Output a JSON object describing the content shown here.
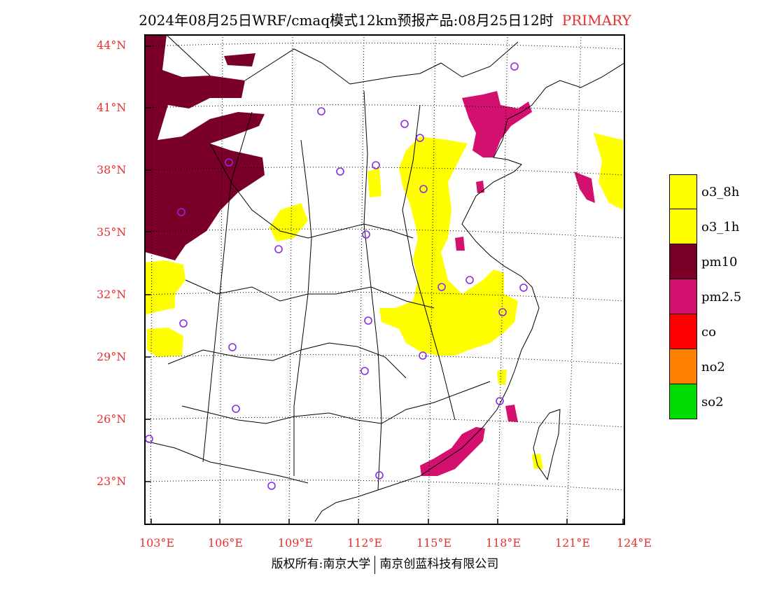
{
  "title": {
    "main": "2024年08月25日WRF/cmaq模式12km预报产品:08月25日12时",
    "tag": "PRIMARY",
    "tag_color": "#e53030"
  },
  "axes": {
    "lat_labels": [
      "44°N",
      "41°N",
      "38°N",
      "35°N",
      "32°N",
      "29°N",
      "26°N",
      "23°N"
    ],
    "lon_labels": [
      "103°E",
      "106°E",
      "109°E",
      "112°E",
      "115°E",
      "118°E",
      "121°E",
      "124°E"
    ],
    "label_color": "#e53030"
  },
  "legend": {
    "items": [
      {
        "label": "o3_8h",
        "color": "#ffff00"
      },
      {
        "label": "o3_1h",
        "color": "#ffff00"
      },
      {
        "label": "pm10",
        "color": "#7a0028"
      },
      {
        "label": "pm2.5",
        "color": "#d4106e"
      },
      {
        "label": "co",
        "color": "#ff0000"
      },
      {
        "label": "no2",
        "color": "#ff8000"
      },
      {
        "label": "so2",
        "color": "#00dd00"
      }
    ]
  },
  "footer": {
    "left": "版权所有:南京大学",
    "right": "南京创蓝科技有限公司"
  },
  "colors": {
    "o3": "#ffff00",
    "pm10": "#7a0028",
    "pm25": "#d4106e",
    "station": "#8a2be2"
  }
}
